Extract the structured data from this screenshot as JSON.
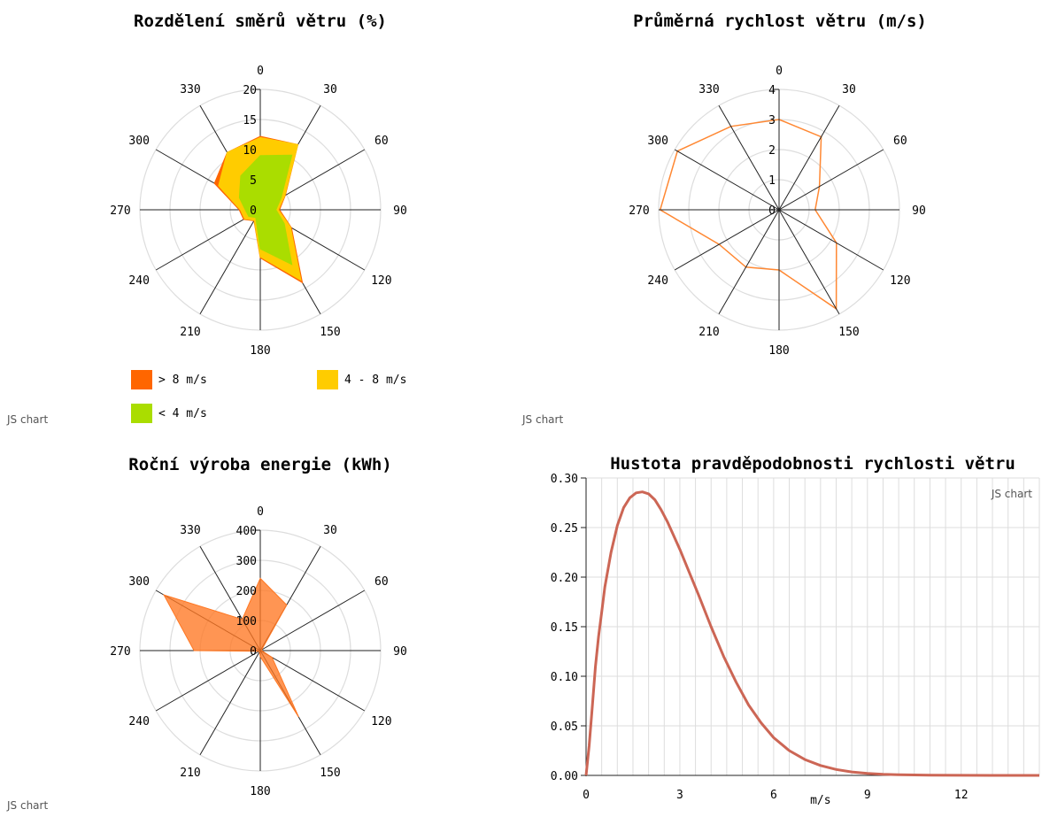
{
  "chart_data": [
    {
      "type": "radar-area",
      "title": "Rozdělení směrů větru (%)",
      "angle_labels": [
        "0",
        "30",
        "60",
        "90",
        "120",
        "150",
        "180",
        "210",
        "240",
        "270",
        "300",
        "330"
      ],
      "radial_ticks": [
        "0",
        "5",
        "10",
        "15",
        "20"
      ],
      "radial_max": 20,
      "series": [
        {
          "name": "> 8 m/s",
          "color": "#ff6600",
          "values": [
            12.2,
            12.5,
            4.8,
            3.2,
            6.0,
            14.0,
            8.0,
            2.1,
            3.2,
            3.5,
            8.8,
            11.0
          ]
        },
        {
          "name": "4 - 8 m/s",
          "color": "#ffcc00",
          "values": [
            12.0,
            12.5,
            4.7,
            3.0,
            5.8,
            13.5,
            7.8,
            2.0,
            3.0,
            3.3,
            8.0,
            11.0
          ]
        },
        {
          "name": "< 4 m/s",
          "color": "#aadd00",
          "values": [
            9.0,
            10.5,
            4.0,
            2.6,
            4.6,
            10.5,
            6.5,
            1.5,
            2.2,
            2.5,
            4.0,
            6.5
          ]
        }
      ],
      "credit": "JS chart"
    },
    {
      "type": "radar-line",
      "title": "Průměrná rychlost větru (m/s)",
      "angle_labels": [
        "0",
        "30",
        "60",
        "90",
        "120",
        "150",
        "180",
        "210",
        "240",
        "270",
        "300",
        "330"
      ],
      "radial_ticks": [
        "0",
        "1",
        "2",
        "3",
        "4"
      ],
      "radial_max": 4,
      "series": [
        {
          "color": "#ff8833",
          "values": [
            3.0,
            2.8,
            1.55,
            1.2,
            2.2,
            3.8,
            2.0,
            2.2,
            2.3,
            3.95,
            3.9,
            3.2
          ]
        }
      ],
      "credit": "JS chart"
    },
    {
      "type": "radar-area",
      "title": "Roční výroba energie (kWh)",
      "angle_labels": [
        "0",
        "30",
        "60",
        "90",
        "120",
        "150",
        "180",
        "210",
        "240",
        "270",
        "300",
        "330"
      ],
      "radial_ticks": [
        "0",
        "100",
        "200",
        "300",
        "400"
      ],
      "radial_max": 400,
      "series": [
        {
          "color": "#ff7722",
          "values": [
            240,
            175,
            5,
            5,
            45,
            255,
            20,
            5,
            5,
            220,
            370,
            120
          ]
        }
      ],
      "credit": "JS chart"
    },
    {
      "type": "line",
      "title": "Hustota pravděpodobnosti rychlosti větru",
      "xlabel": "m/s",
      "ylabel": "",
      "xlim": [
        0,
        14.5
      ],
      "ylim": [
        0,
        0.3
      ],
      "x_ticks": [
        "0",
        "3",
        "6",
        "9",
        "12"
      ],
      "y_ticks": [
        "0.00",
        "0.05",
        "0.10",
        "0.15",
        "0.20",
        "0.25",
        "0.30"
      ],
      "series": [
        {
          "color": "#cc6655",
          "x": [
            0,
            0.1,
            0.2,
            0.3,
            0.4,
            0.5,
            0.6,
            0.8,
            1.0,
            1.2,
            1.4,
            1.6,
            1.8,
            2.0,
            2.2,
            2.4,
            2.6,
            2.8,
            3.0,
            3.3,
            3.6,
            4.0,
            4.4,
            4.8,
            5.2,
            5.6,
            6.0,
            6.5,
            7.0,
            7.5,
            8.0,
            8.5,
            9.0,
            9.5,
            10.0,
            11.0,
            12.0,
            13.0,
            14.0,
            14.5
          ],
          "y": [
            0,
            0.03,
            0.07,
            0.11,
            0.14,
            0.165,
            0.19,
            0.225,
            0.252,
            0.27,
            0.28,
            0.285,
            0.286,
            0.284,
            0.278,
            0.268,
            0.256,
            0.242,
            0.228,
            0.205,
            0.182,
            0.15,
            0.12,
            0.094,
            0.071,
            0.053,
            0.038,
            0.025,
            0.016,
            0.01,
            0.006,
            0.0035,
            0.002,
            0.0012,
            0.0007,
            0.0002,
            0.0001,
            0,
            0,
            0
          ]
        }
      ],
      "credit": "JS chart"
    }
  ]
}
